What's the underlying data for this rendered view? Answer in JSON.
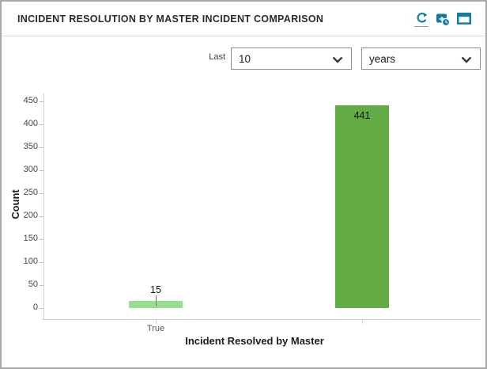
{
  "header": {
    "title": "INCIDENT RESOLUTION BY MASTER INCIDENT COMPARISON",
    "accent_color": "#117d9e",
    "icons": [
      "refresh",
      "scheduled-export",
      "maximize"
    ]
  },
  "controls": {
    "last_label": "Last",
    "number_value": "10",
    "unit_value": "years"
  },
  "chart_data": {
    "type": "bar",
    "title": "",
    "categories": [
      "True",
      ""
    ],
    "values": [
      15,
      441
    ],
    "xlabel": "Incident Resolved by Master",
    "ylabel": "Count",
    "ylim": [
      0,
      450
    ],
    "ytick_step": 50,
    "bar_colors": [
      "#97de8f",
      "#62ab45"
    ],
    "grid": false,
    "value_labels": true,
    "legend": "none"
  }
}
